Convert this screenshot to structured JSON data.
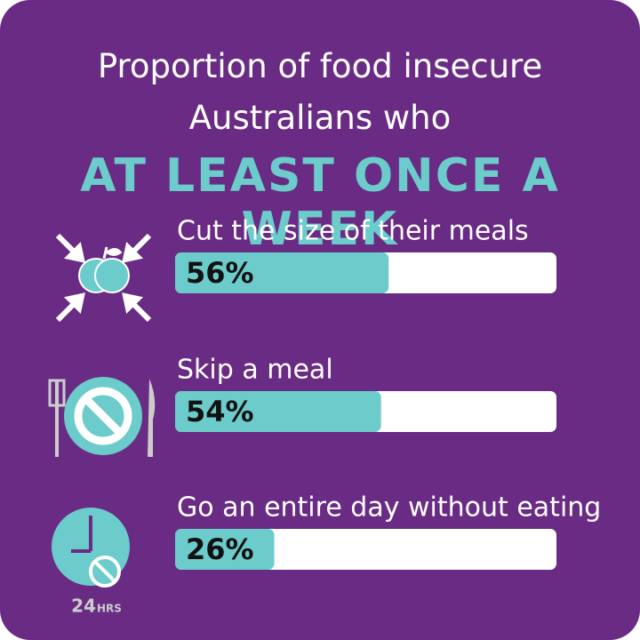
{
  "chart_data": {
    "type": "bar",
    "orientation": "horizontal",
    "title": "Proportion of food insecure Australians who",
    "subtitle": "AT LEAST ONCE A WEEK",
    "categories": [
      "Cut the size of their meals",
      "Skip a meal",
      "Go an entire day without eating"
    ],
    "values": [
      56,
      54,
      26
    ],
    "value_labels": [
      "56%",
      "54%",
      "26%"
    ],
    "xlim": [
      0,
      100
    ],
    "color": "#6ccbcb",
    "track_color": "#ffffff",
    "background": "#6a2b84",
    "annotations": [
      "24",
      "HRS"
    ]
  }
}
